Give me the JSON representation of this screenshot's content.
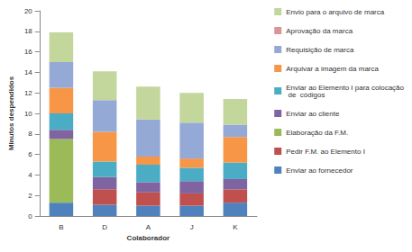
{
  "chart_data": {
    "type": "bar",
    "stacked": true,
    "x_label": "Colaborador",
    "y_label": "Minutos despendidos",
    "categories": [
      "B",
      "D",
      "A",
      "J",
      "K"
    ],
    "series": [
      {
        "name": "Enviar ao fornecedor",
        "color": "#4f81bd",
        "values": [
          1.3,
          1.1,
          1.0,
          1.0,
          1.3
        ]
      },
      {
        "name": "Pedir F.M. ao Elemento I",
        "color": "#c0504d",
        "values": [
          0,
          1.5,
          1.3,
          1.2,
          1.3
        ]
      },
      {
        "name": "Elaboração da F.M.",
        "color": "#9bbb59",
        "values": [
          6.2,
          0,
          0,
          0,
          0
        ]
      },
      {
        "name": "Enviar ao cliente",
        "color": "#8064a2",
        "values": [
          0.9,
          1.2,
          1.0,
          1.2,
          1.0
        ]
      },
      {
        "name": "Enviar ao Elemento I para colocação de  códigos",
        "color": "#4bacc6",
        "values": [
          1.6,
          1.5,
          1.7,
          1.3,
          1.6
        ]
      },
      {
        "name": "Arquivar a imagem da marca",
        "color": "#f79646",
        "values": [
          2.5,
          2.9,
          0.8,
          0.9,
          2.5
        ]
      },
      {
        "name": "Requisição de marca",
        "color": "#95a9d6",
        "values": [
          2.5,
          3.1,
          3.6,
          3.5,
          1.2
        ]
      },
      {
        "name": "Aprovação da marca",
        "color": "#d99694",
        "values": [
          0,
          0,
          0,
          0,
          0
        ]
      },
      {
        "name": "Envio para o arquivo de marca",
        "color": "#c3d69b",
        "values": [
          2.9,
          2.8,
          3.2,
          2.9,
          2.5
        ]
      }
    ],
    "ylim": [
      0,
      20
    ],
    "yticks": [
      0,
      2,
      4,
      6,
      8,
      10,
      12,
      14,
      16,
      18,
      20
    ],
    "grid": false,
    "legend": "right"
  }
}
